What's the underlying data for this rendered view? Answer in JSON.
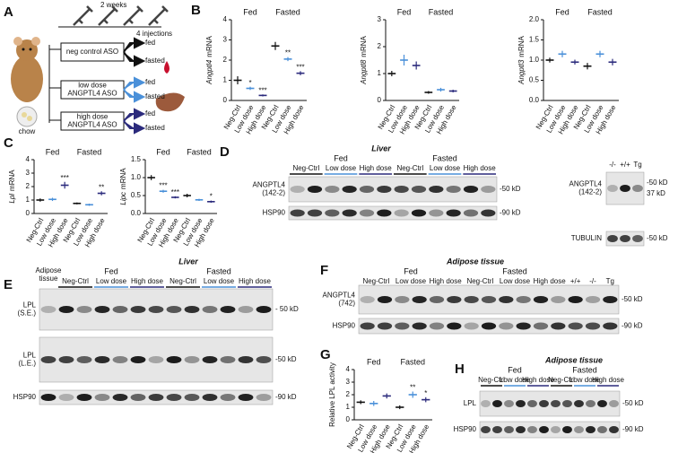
{
  "panel_labels": [
    "A",
    "B",
    "C",
    "D",
    "E",
    "F",
    "G",
    "H"
  ],
  "panel_a": {
    "timeline": "2 weeks",
    "injections": "4 injections",
    "diet": "chow",
    "groups": [
      {
        "label": [
          "neg control ASO"
        ],
        "conditions": [
          "fed",
          "fasted"
        ]
      },
      {
        "label": [
          "low dose",
          "ANGPTL4 ASO"
        ],
        "conditions": [
          "fed",
          "fasted"
        ]
      },
      {
        "label": [
          "high dose",
          "ANGPTL4 ASO"
        ],
        "conditions": [
          "fed",
          "fasted"
        ]
      }
    ]
  },
  "group_colors": [
    "#111111",
    "#4a90d9",
    "#2b2a7c"
  ],
  "panel_d": {
    "title": "Liver",
    "conditions": [
      "Fed",
      "Fasted"
    ],
    "lanes": [
      "Neg-Ctrl",
      "Low dose",
      "High dose",
      "Neg-Ctrl",
      "Low dose",
      "High dose"
    ],
    "rows": [
      {
        "label": [
          "ANGPTL4",
          "(142-2)"
        ],
        "markers": [
          "-50 kD"
        ]
      },
      {
        "label": [
          "HSP90"
        ],
        "markers": [
          "-90 kD"
        ]
      }
    ],
    "inset": {
      "lanes": [
        "-/-",
        "+/+",
        "Tg"
      ],
      "rows": [
        {
          "label": [
            "ANGPTL4",
            "(142-2)"
          ],
          "markers": [
            "-50 kD",
            "37 kD"
          ]
        },
        {
          "label": [
            "TUBULIN"
          ],
          "markers": [
            "-50 kD"
          ]
        }
      ]
    }
  },
  "panel_e": {
    "title": "Liver",
    "lead_lane": [
      "Adipose",
      "tissue"
    ],
    "conditions": [
      "Fed",
      "Fasted"
    ],
    "lanes": [
      "Neg-Ctrl",
      "Low dose",
      "High dose",
      "Neg-Ctrl",
      "Low dose",
      "High dose"
    ],
    "rows": [
      {
        "label": [
          "LPL",
          "(S.E.)"
        ],
        "markers": [
          "- 50 kD"
        ]
      },
      {
        "label": [
          "LPL",
          "(L.E.)"
        ],
        "markers": [
          "-50 kD"
        ]
      },
      {
        "label": [
          "HSP90"
        ],
        "markers": [
          "-90 kD"
        ]
      }
    ]
  },
  "panel_f": {
    "title": "Adipose tissue",
    "conditions": [
      "Fed",
      "Fasted"
    ],
    "lanes": [
      "Neg-Ctrl",
      "Low dose",
      "High dose",
      "Neg-Ctrl",
      "Low dose",
      "High dose"
    ],
    "extra_lanes": [
      "+/+",
      "-/-",
      "Tg"
    ],
    "rows": [
      {
        "label": [
          "ANGPTL4",
          "(742)"
        ],
        "markers": [
          "-50 kD"
        ]
      },
      {
        "label": [
          "HSP90"
        ],
        "markers": [
          "-90 kD"
        ]
      }
    ]
  },
  "panel_h": {
    "title": "Adipose tissue",
    "conditions": [
      "Fed",
      "Fasted"
    ],
    "lanes": [
      "Neg-Ctrl",
      "Low dose",
      "High dose",
      "Neg-Ctrl",
      "Low dose",
      "High dose"
    ],
    "rows": [
      {
        "label": [
          "LPL"
        ],
        "markers": [
          "-50 kD"
        ]
      },
      {
        "label": [
          "HSP90"
        ],
        "markers": [
          "-90 kD"
        ]
      }
    ]
  },
  "chart_data": [
    {
      "type": "dot",
      "ylabel": [
        "Angptl4",
        "mRNA"
      ],
      "groups": [
        "Fed",
        "Fasted"
      ],
      "categories": [
        "Neg-Ctrl",
        "Low dose",
        "High dose",
        "Neg-Ctrl",
        "Low dose",
        "High dose"
      ],
      "colors": [
        "#111111",
        "#4a90d9",
        "#2b2a7c",
        "#111111",
        "#4a90d9",
        "#2b2a7c"
      ],
      "values": [
        1.0,
        0.6,
        0.25,
        2.7,
        2.05,
        1.35
      ],
      "errors": [
        0.2,
        0.08,
        0.05,
        0.2,
        0.1,
        0.1
      ],
      "annotations": [
        null,
        "*",
        "***",
        null,
        "**",
        "***"
      ],
      "ylim": [
        0,
        4
      ],
      "yticks": [
        0,
        1,
        2,
        3,
        4
      ]
    },
    {
      "type": "dot",
      "ylabel": [
        "Angptl8",
        "mRNA"
      ],
      "groups": [
        "Fed",
        "Fasted"
      ],
      "categories": [
        "Neg-Ctrl",
        "Low dose",
        "High dose",
        "Neg-Ctrl",
        "Low dose",
        "High dose"
      ],
      "colors": [
        "#111111",
        "#4a90d9",
        "#2b2a7c",
        "#111111",
        "#4a90d9",
        "#2b2a7c"
      ],
      "values": [
        1.0,
        1.5,
        1.3,
        0.3,
        0.4,
        0.35
      ],
      "errors": [
        0.1,
        0.2,
        0.15,
        0.05,
        0.07,
        0.05
      ],
      "annotations": [
        null,
        null,
        null,
        null,
        null,
        null
      ],
      "ylim": [
        0,
        3
      ],
      "yticks": [
        0,
        1,
        2,
        3
      ]
    },
    {
      "type": "dot",
      "ylabel": [
        "Angptl3",
        "mRNA"
      ],
      "groups": [
        "Fed",
        "Fasted"
      ],
      "categories": [
        "Neg-Ctrl",
        "Low dose",
        "High dose",
        "Neg-Ctrl",
        "Low dose",
        "High dose"
      ],
      "colors": [
        "#111111",
        "#4a90d9",
        "#2b2a7c",
        "#111111",
        "#4a90d9",
        "#2b2a7c"
      ],
      "values": [
        1.0,
        1.15,
        0.95,
        0.85,
        1.15,
        0.95
      ],
      "errors": [
        0.06,
        0.08,
        0.06,
        0.08,
        0.08,
        0.08
      ],
      "annotations": [
        null,
        null,
        null,
        null,
        null,
        null
      ],
      "ylim": [
        0,
        2
      ],
      "yticks": [
        {
          "value": 0,
          "label": "0.0"
        },
        {
          "value": 0.5,
          "label": "0.5"
        },
        {
          "value": 1,
          "label": "1.0"
        },
        {
          "value": 1.5,
          "label": "1.5"
        },
        {
          "value": 2,
          "label": "2.0"
        }
      ]
    },
    {
      "type": "dot",
      "ylabel": [
        "Lpl",
        "mRNA"
      ],
      "groups": [
        "Fed",
        "Fasted"
      ],
      "categories": [
        "Neg-Ctrl",
        "Low dose",
        "High dose",
        "Neg-Ctrl",
        "Low dose",
        "High dose"
      ],
      "colors": [
        "#111111",
        "#4a90d9",
        "#2b2a7c",
        "#111111",
        "#4a90d9",
        "#2b2a7c"
      ],
      "values": [
        1.0,
        1.05,
        2.1,
        0.75,
        0.65,
        1.5
      ],
      "errors": [
        0.12,
        0.12,
        0.25,
        0.07,
        0.08,
        0.15
      ],
      "annotations": [
        null,
        null,
        "***",
        null,
        null,
        "**"
      ],
      "ylim": [
        0,
        4
      ],
      "yticks": [
        0,
        1,
        2,
        3,
        4
      ]
    },
    {
      "type": "dot",
      "ylabel": [
        "Lipc",
        "mRNA"
      ],
      "groups": [
        "Fed",
        "Fasted"
      ],
      "categories": [
        "Neg-Ctrl",
        "Low dose",
        "High dose",
        "Neg-Ctrl",
        "Low dose",
        "High dose"
      ],
      "colors": [
        "#111111",
        "#4a90d9",
        "#2b2a7c",
        "#111111",
        "#4a90d9",
        "#2b2a7c"
      ],
      "values": [
        1.0,
        0.62,
        0.45,
        0.5,
        0.38,
        0.33
      ],
      "errors": [
        0.07,
        0.04,
        0.03,
        0.05,
        0.03,
        0.03
      ],
      "annotations": [
        null,
        "***",
        "***",
        null,
        null,
        "*"
      ],
      "ylim": [
        0,
        1.5
      ],
      "yticks": [
        {
          "value": 0,
          "label": "0.0"
        },
        {
          "value": 0.5,
          "label": "0.5"
        },
        {
          "value": 1,
          "label": "1.0"
        },
        {
          "value": 1.5,
          "label": "1.5"
        }
      ]
    },
    {
      "type": "dot",
      "ylabel": [
        "Relative LPL activity"
      ],
      "groups": [
        "Fed",
        "Fasted"
      ],
      "categories": [
        "Neg-Ctrl",
        "Low dose",
        "High dose",
        "Neg-Ctrl",
        "Low dose",
        "High dose"
      ],
      "colors": [
        "#111111",
        "#4a90d9",
        "#2b2a7c",
        "#111111",
        "#4a90d9",
        "#2b2a7c"
      ],
      "values": [
        1.4,
        1.3,
        1.9,
        1.0,
        2.0,
        1.6
      ],
      "errors": [
        0.15,
        0.2,
        0.2,
        0.15,
        0.25,
        0.2
      ],
      "annotations": [
        null,
        null,
        null,
        null,
        "**",
        "*"
      ],
      "ylim": [
        0,
        4
      ],
      "yticks": [
        0,
        1,
        2,
        3,
        4
      ]
    }
  ]
}
